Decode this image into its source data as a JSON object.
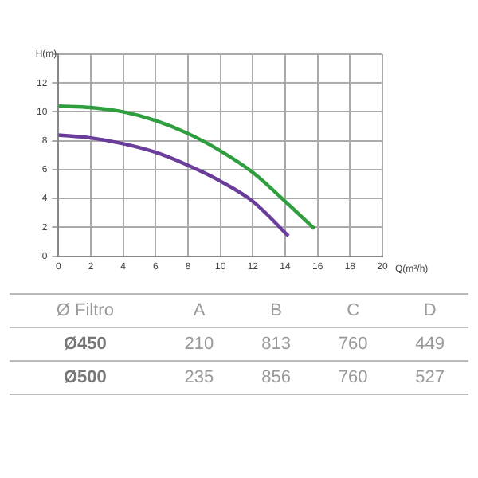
{
  "chart_data": [
    {
      "type": "line",
      "xlabel": "Q(m³/h)",
      "ylabel": "H(m)",
      "xlim": [
        0,
        20
      ],
      "xticks": [
        0,
        2,
        4,
        6,
        8,
        10,
        12,
        14,
        16,
        18,
        20
      ],
      "ylim": [
        0,
        14
      ],
      "yticks": [
        0,
        2,
        4,
        6,
        8,
        10,
        12,
        {
          "value": 14,
          "label": null
        }
      ],
      "grid": true,
      "marker": "none",
      "series": [
        {
          "color": "#2e9e3e",
          "x": [
            0,
            2,
            4,
            6,
            8,
            10,
            12,
            14,
            15.8
          ],
          "values": [
            10.4,
            10.3,
            10.0,
            9.4,
            8.5,
            7.3,
            5.8,
            3.8,
            1.9
          ]
        },
        {
          "color": "#6a3d9a",
          "x": [
            0,
            2,
            4,
            6,
            8,
            10,
            12,
            14.2
          ],
          "values": [
            8.4,
            8.2,
            7.8,
            7.2,
            6.3,
            5.2,
            3.8,
            1.4
          ]
        }
      ]
    },
    {
      "type": "other",
      "annotations": [
        "Ø Filtro",
        "A",
        "B",
        "C",
        "D",
        "Ø450",
        "210",
        "813",
        "760",
        "449",
        "Ø500",
        "235",
        "856",
        "760",
        "527"
      ]
    }
  ]
}
